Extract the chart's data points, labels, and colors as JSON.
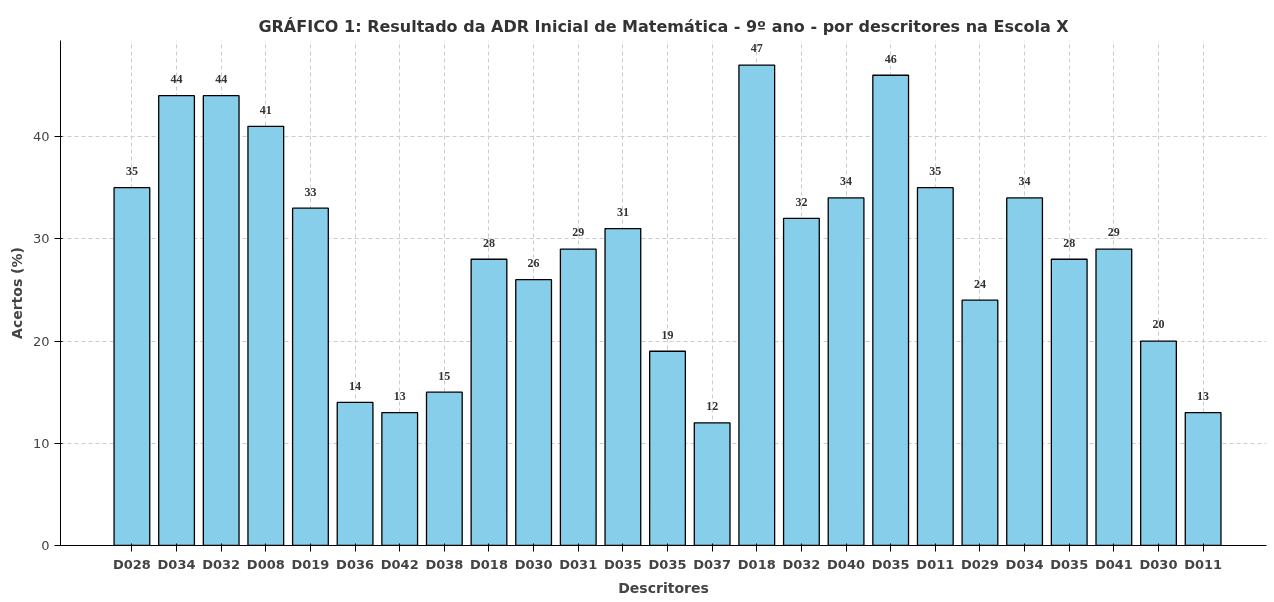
{
  "chart_data": {
    "type": "bar",
    "title": "GRÁFICO 1: Resultado da ADR Inicial de Matemática - 9º ano - por descritores na Escola X",
    "xlabel": "Descritores",
    "ylabel": "Acertos (%)",
    "categories": [
      "D028",
      "D034",
      "D032",
      "D008",
      "D019",
      "D036",
      "D042",
      "D038",
      "D018",
      "D030",
      "D031",
      "D035",
      "D035",
      "D037",
      "D018",
      "D032",
      "D040",
      "D035",
      "D011",
      "D029",
      "D034",
      "D035",
      "D041",
      "D030",
      "D011"
    ],
    "values": [
      35,
      44,
      44,
      41,
      33,
      14,
      13,
      15,
      28,
      26,
      29,
      31,
      19,
      12,
      47,
      32,
      34,
      46,
      35,
      24,
      34,
      28,
      29,
      20,
      13
    ],
    "color": "#87ceeb",
    "ylim": [
      0,
      49.4
    ],
    "yticks": [
      0,
      10,
      20,
      30,
      40
    ],
    "grid": true,
    "data_labels": true
  }
}
